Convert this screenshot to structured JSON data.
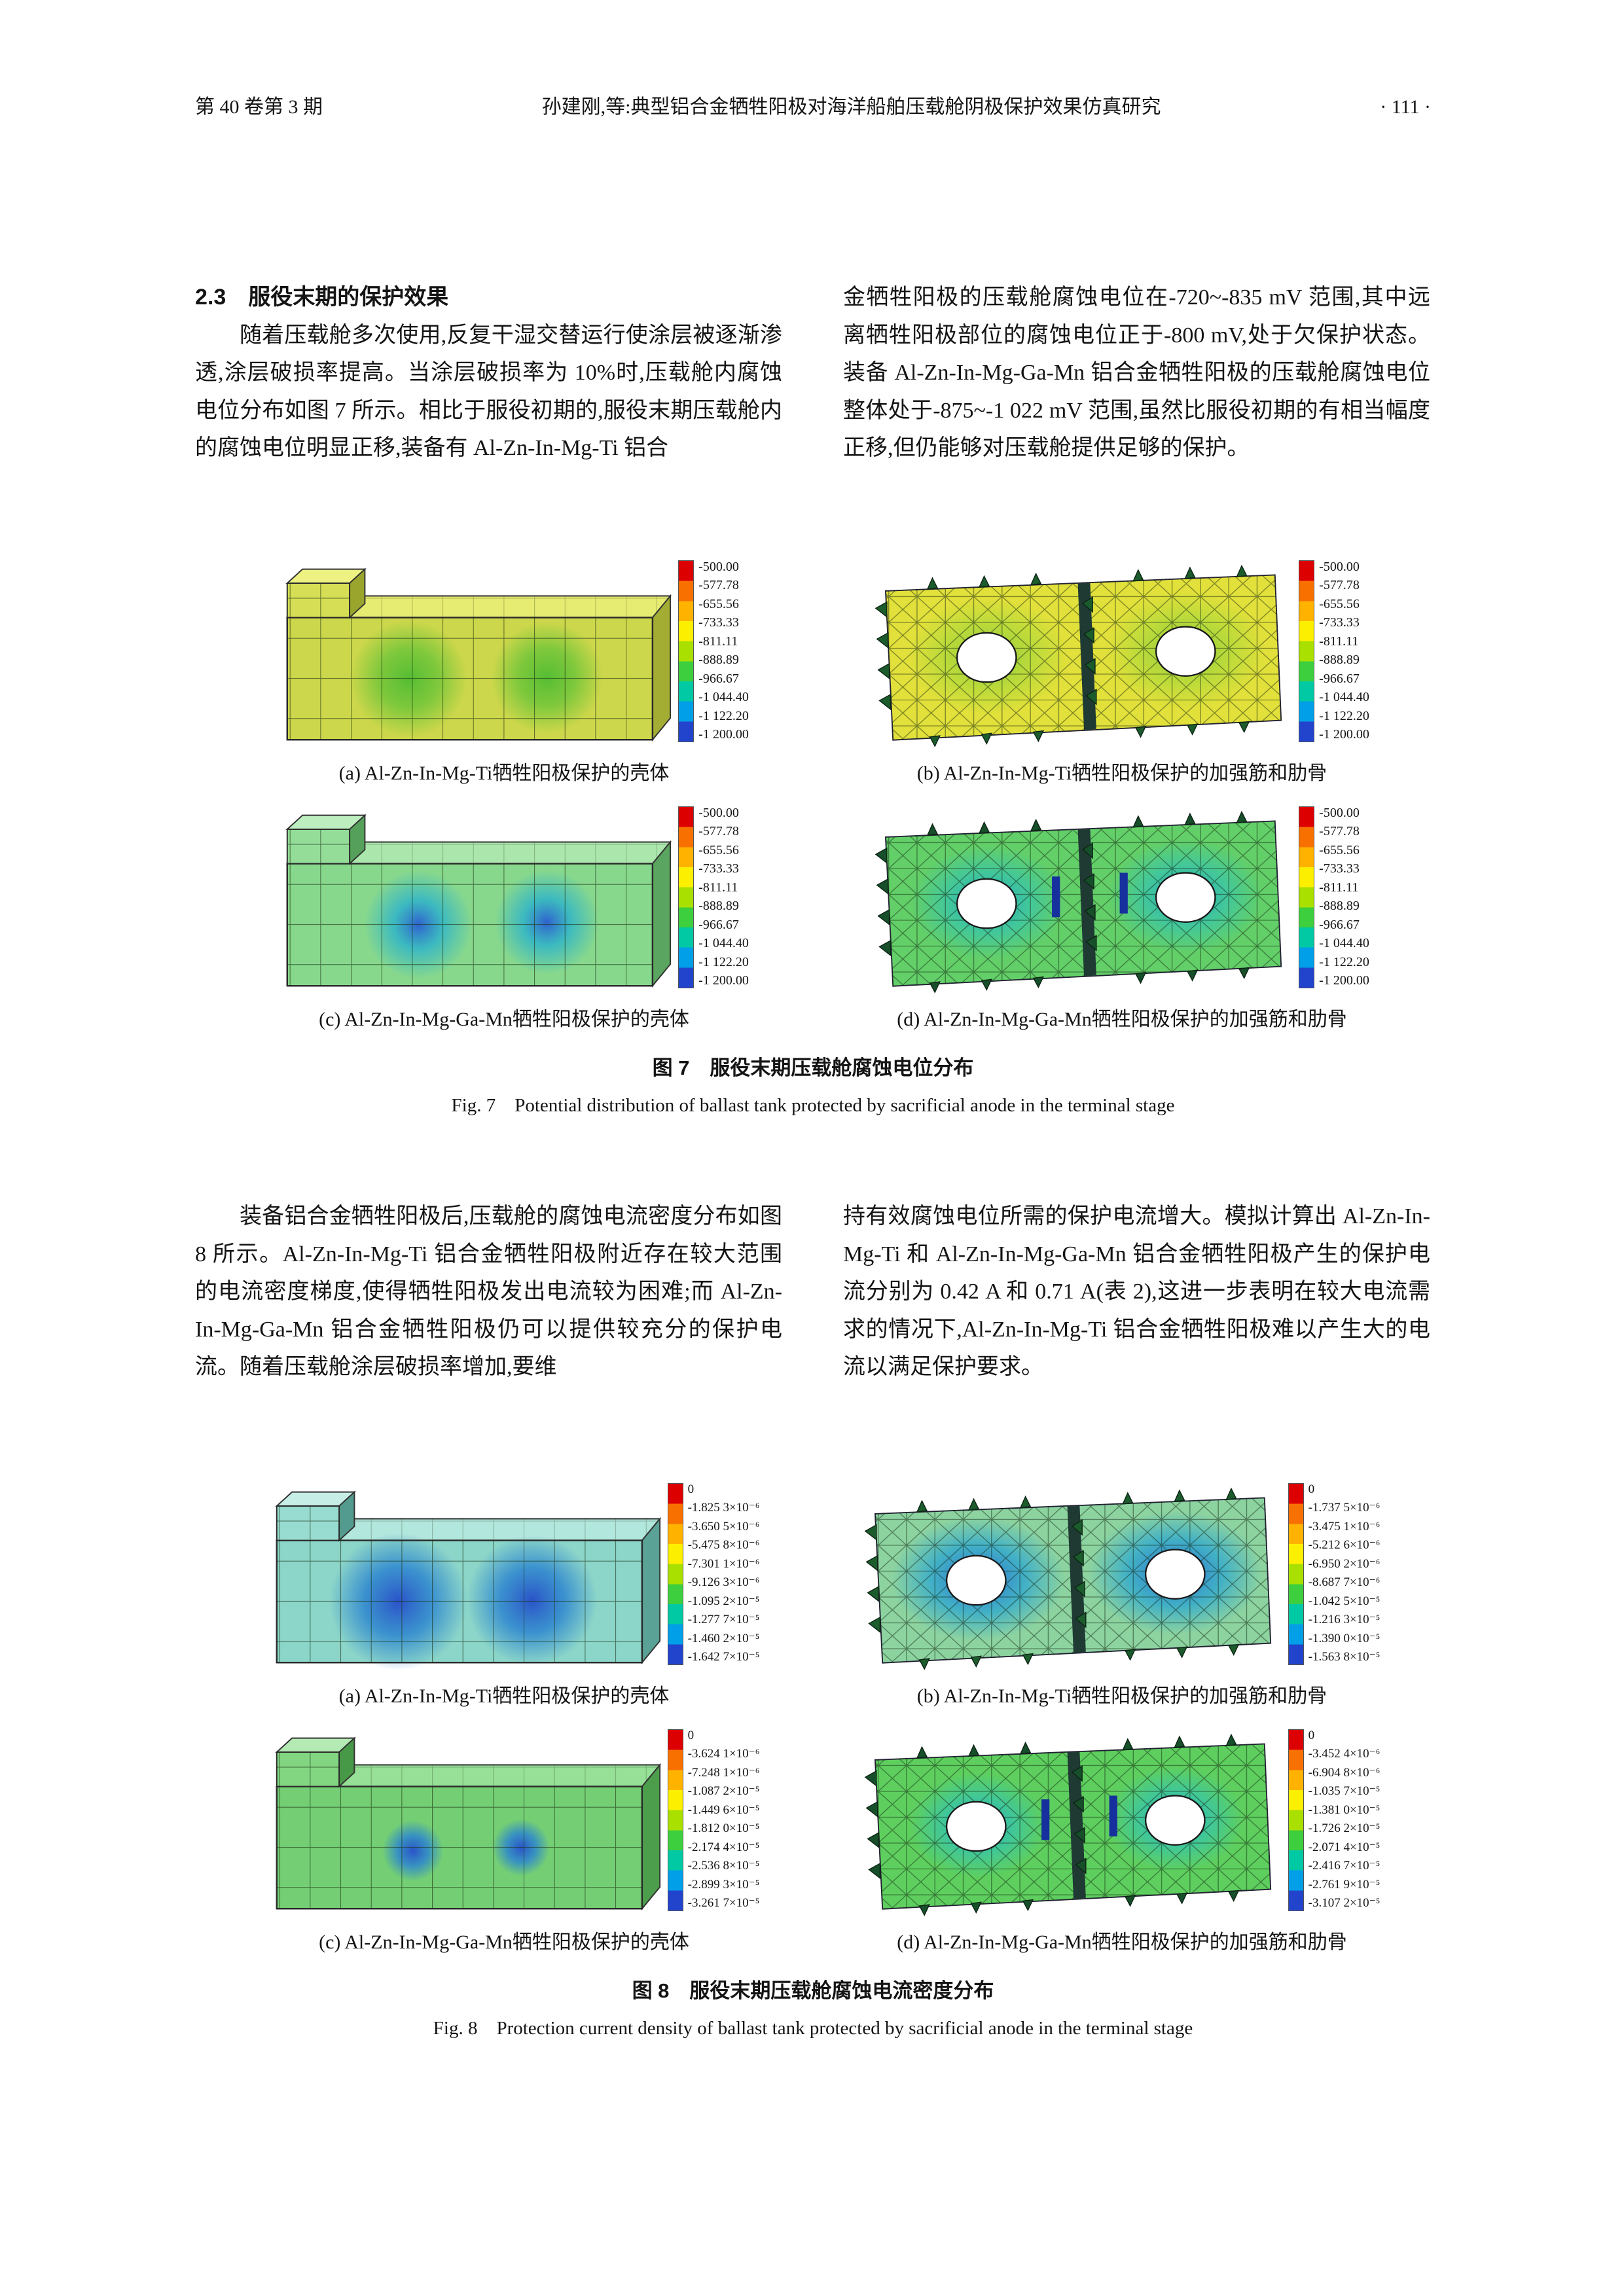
{
  "header": {
    "issue": "第 40 卷第 3 期",
    "title": "孙建刚,等:典型铝合金牺牲阳极对海洋船舶压载舱阴极保护效果仿真研究",
    "page": "· 111 ·"
  },
  "section": {
    "heading": "2.3　服役末期的保护效果"
  },
  "text": {
    "p1_left": "随着压载舱多次使用,反复干湿交替运行使涂层被逐渐渗透,涂层破损率提高。当涂层破损率为 10%时,压载舱内腐蚀电位分布如图 7 所示。相比于服役初期的,服役末期压载舱内的腐蚀电位明显正移,装备有 Al-Zn-In-Mg-Ti 铝合",
    "p1_right": "金牺牲阳极的压载舱腐蚀电位在-720~-835 mV 范围,其中远离牺牲阳极部位的腐蚀电位正于-800 mV,处于欠保护状态。装备 Al-Zn-In-Mg-Ga-Mn 铝合金牺牲阳极的压载舱腐蚀电位整体处于-875~-1 022 mV 范围,虽然比服役初期的有相当幅度正移,但仍能够对压载舱提供足够的保护。",
    "p2_left": "装备铝合金牺牲阳极后,压载舱的腐蚀电流密度分布如图 8 所示。Al-Zn-In-Mg-Ti 铝合金牺牲阳极附近存在较大范围的电流密度梯度,使得牺牲阳极发出电流较为困难;而 Al-Zn-In-Mg-Ga-Mn 铝合金牺牲阳极仍可以提供较充分的保护电流。随着压载舱涂层破损率增加,要维",
    "p2_right": "持有效腐蚀电位所需的保护电流增大。模拟计算出 Al-Zn-In-Mg-Ti 和 Al-Zn-In-Mg-Ga-Mn 铝合金牺牲阳极产生的保护电流分别为 0.42 A 和 0.71 A(表 2),这进一步表明在较大电流需求的情况下,Al-Zn-In-Mg-Ti 铝合金牺牲阳极难以产生大的电流以满足保护要求。"
  },
  "fig7": {
    "colorbar": [
      "-500.00",
      "-577.78",
      "-655.56",
      "-733.33",
      "-811.11",
      "-888.89",
      "-966.67",
      "-1 044.40",
      "-1 122.20",
      "-1 200.00"
    ],
    "subcaps": [
      "(a) Al-Zn-In-Mg-Ti牺牲阳极保护的壳体",
      "(b) Al-Zn-In-Mg-Ti牺牲阳极保护的加强筋和肋骨",
      "(c) Al-Zn-In-Mg-Ga-Mn牺牲阳极保护的壳体",
      "(d) Al-Zn-In-Mg-Ga-Mn牺牲阳极保护的加强筋和肋骨"
    ],
    "caption_zh": "图 7　服役末期压载舱腐蚀电位分布",
    "caption_en": "Fig. 7　Potential distribution of ballast tank protected by sacrificial anode in the terminal stage"
  },
  "fig8": {
    "colorbars": {
      "a": [
        "0",
        "-1.825 3×10⁻⁶",
        "-3.650 5×10⁻⁶",
        "-5.475 8×10⁻⁶",
        "-7.301 1×10⁻⁶",
        "-9.126 3×10⁻⁶",
        "-1.095 2×10⁻⁵",
        "-1.277 7×10⁻⁵",
        "-1.460 2×10⁻⁵",
        "-1.642 7×10⁻⁵"
      ],
      "b": [
        "0",
        "-1.737 5×10⁻⁶",
        "-3.475 1×10⁻⁶",
        "-5.212 6×10⁻⁶",
        "-6.950 2×10⁻⁶",
        "-8.687 7×10⁻⁶",
        "-1.042 5×10⁻⁵",
        "-1.216 3×10⁻⁵",
        "-1.390 0×10⁻⁵",
        "-1.563 8×10⁻⁵"
      ],
      "c": [
        "0",
        "-3.624 1×10⁻⁶",
        "-7.248 1×10⁻⁶",
        "-1.087 2×10⁻⁵",
        "-1.449 6×10⁻⁵",
        "-1.812 0×10⁻⁵",
        "-2.174 4×10⁻⁵",
        "-2.536 8×10⁻⁵",
        "-2.899 3×10⁻⁵",
        "-3.261 7×10⁻⁵"
      ],
      "d": [
        "0",
        "-3.452 4×10⁻⁶",
        "-6.904 8×10⁻⁶",
        "-1.035 7×10⁻⁵",
        "-1.381 0×10⁻⁵",
        "-1.726 2×10⁻⁵",
        "-2.071 4×10⁻⁵",
        "-2.416 7×10⁻⁵",
        "-2.761 9×10⁻⁵",
        "-3.107 2×10⁻⁵"
      ]
    },
    "subcaps": [
      "(a) Al-Zn-In-Mg-Ti牺牲阳极保护的壳体",
      "(b) Al-Zn-In-Mg-Ti牺牲阳极保护的加强筋和肋骨",
      "(c) Al-Zn-In-Mg-Ga-Mn牺牲阳极保护的壳体",
      "(d) Al-Zn-In-Mg-Ga-Mn牺牲阳极保护的加强筋和肋骨"
    ],
    "caption_zh": "图 8　服役末期压载舱腐蚀电流密度分布",
    "caption_en": "Fig. 8　Protection current density of ballast tank protected by sacrificial anode in the terminal stage"
  }
}
